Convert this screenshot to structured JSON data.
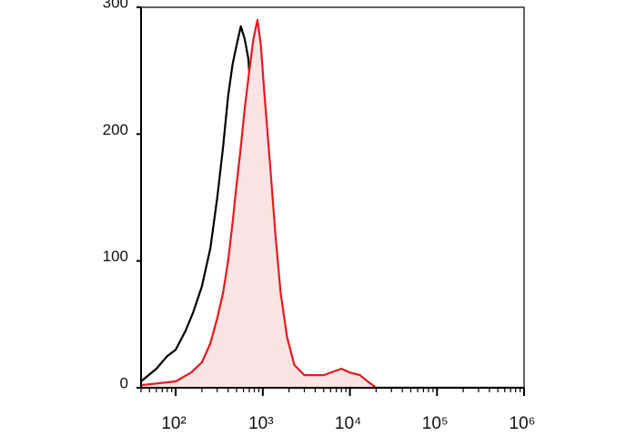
{
  "chart_data": {
    "type": "line",
    "xscale": "log",
    "xlim": [
      40,
      1000000
    ],
    "ylim": [
      0,
      300
    ],
    "yticks": [
      0,
      100,
      200,
      300
    ],
    "xticks": [
      {
        "value": 100,
        "label": "10²"
      },
      {
        "value": 1000,
        "label": "10³"
      },
      {
        "value": 10000,
        "label": "10⁴"
      },
      {
        "value": 100000,
        "label": "10⁵"
      },
      {
        "value": 1000000,
        "label": "10⁶"
      }
    ],
    "series": [
      {
        "color": "#000000",
        "x": [
          40,
          60,
          80,
          100,
          130,
          160,
          200,
          250,
          300,
          350,
          400,
          450,
          500,
          560,
          620,
          680,
          750,
          820,
          900,
          1000,
          1100,
          1250,
          1500,
          2000,
          1000000
        ],
        "values": [
          5,
          15,
          25,
          30,
          45,
          60,
          80,
          110,
          150,
          190,
          230,
          255,
          270,
          285,
          275,
          260,
          220,
          170,
          120,
          70,
          35,
          10,
          3,
          0,
          0
        ]
      },
      {
        "color": "#e8191e",
        "fill": "#fbe4e4",
        "x": [
          40,
          100,
          150,
          200,
          250,
          300,
          350,
          400,
          450,
          500,
          560,
          620,
          700,
          780,
          870,
          950,
          1050,
          1200,
          1400,
          1600,
          1900,
          2300,
          3000,
          5000,
          8000,
          10000,
          13000,
          16000,
          20000
        ],
        "values": [
          2,
          5,
          12,
          20,
          35,
          55,
          75,
          100,
          130,
          160,
          190,
          220,
          250,
          275,
          290,
          270,
          230,
          180,
          120,
          75,
          40,
          18,
          10,
          10,
          15,
          12,
          10,
          5,
          0
        ]
      }
    ]
  }
}
